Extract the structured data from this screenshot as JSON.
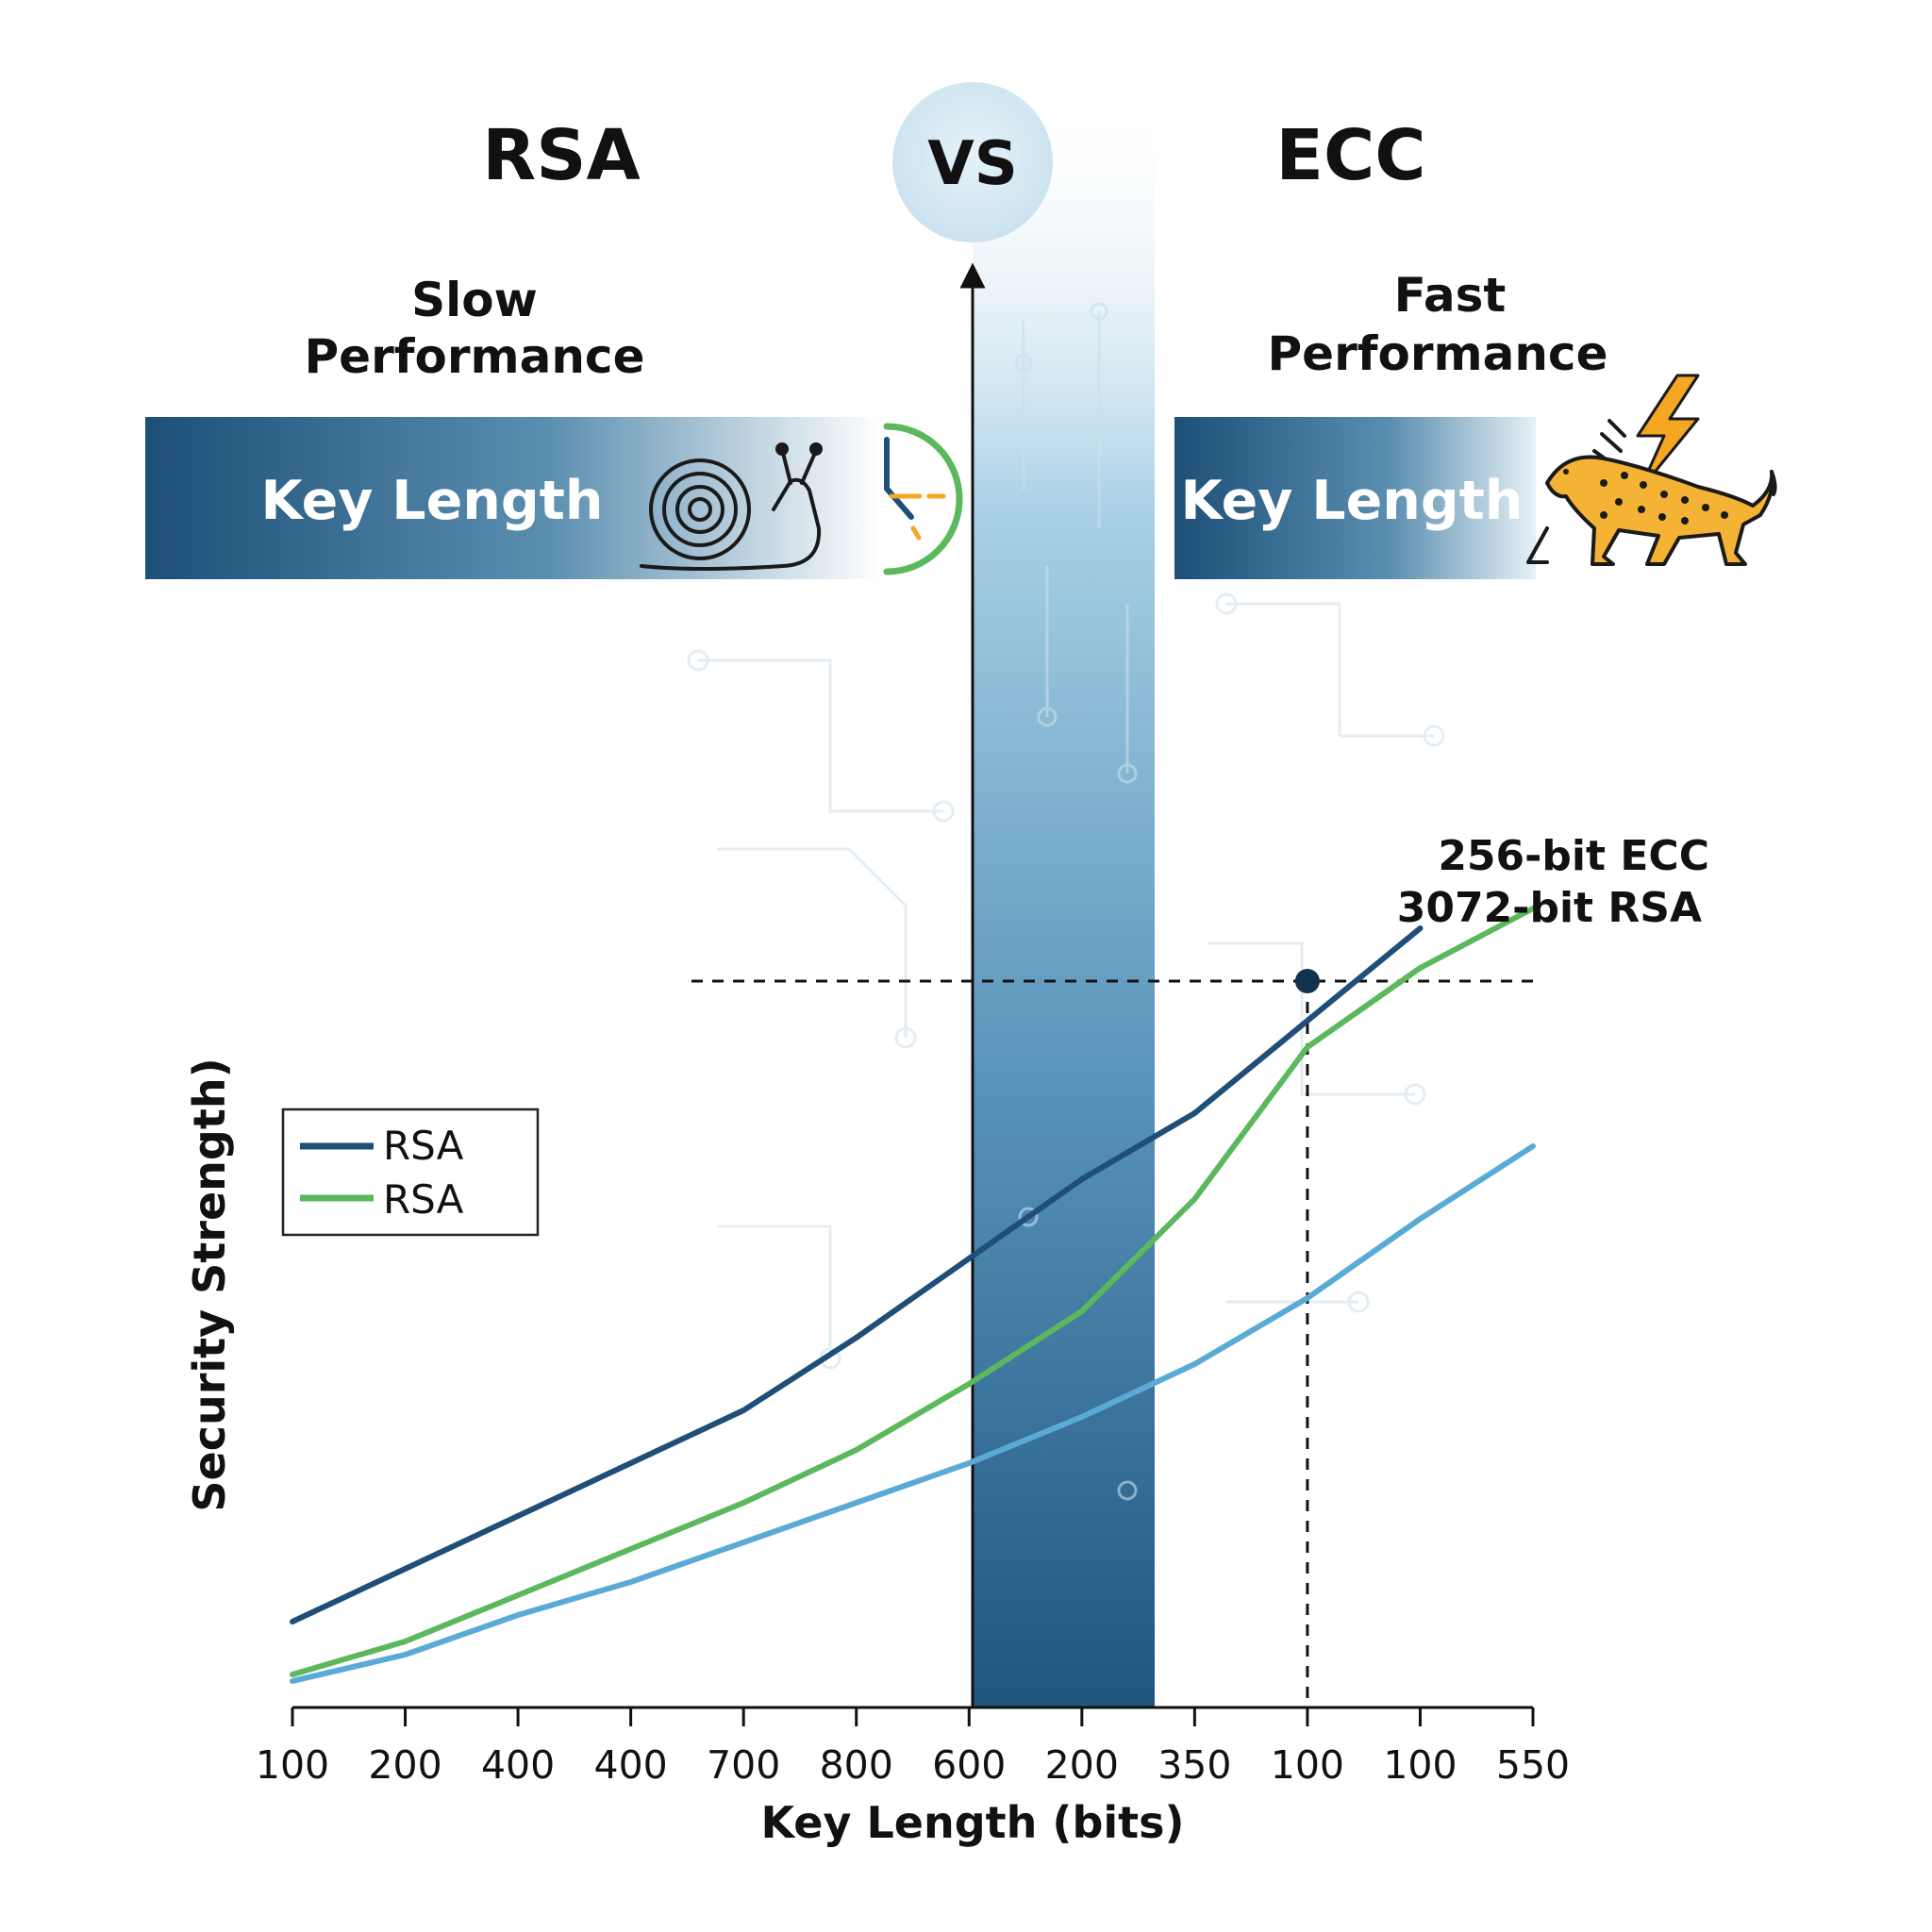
{
  "header": {
    "left_title": "RSA",
    "vs_label": "VS",
    "right_title": "ECC",
    "left_subtitle_line1": "Slow",
    "left_subtitle_line2": "Performance",
    "right_subtitle_line1": "Fast",
    "right_subtitle_line2": "Performance",
    "left_banner_label": "Key Length",
    "right_banner_label": "Key Length"
  },
  "icons": {
    "left": [
      "snail-icon",
      "clock-icon"
    ],
    "right": [
      "cheetah-icon",
      "lightning-icon"
    ]
  },
  "colors": {
    "rsa_dark": "#1f4e79",
    "rsa_green": "#5cb85c",
    "light_blue": "#5aaad6",
    "banner_dark": "#1d4f78",
    "accent_orange": "#f5a623"
  },
  "chart_data": {
    "type": "line",
    "categories": [
      "100",
      "200",
      "400",
      "400",
      "700",
      "800",
      "600",
      "200",
      "350",
      "100",
      "100",
      "550"
    ],
    "series": [
      {
        "name": "RSA",
        "color": "#1f4e79",
        "values": [
          13,
          21,
          29,
          37,
          45,
          56,
          68,
          80,
          90,
          104,
          118,
          null
        ]
      },
      {
        "name": "RSA",
        "color": "#5cb85c",
        "values": [
          5,
          10,
          17,
          24,
          31,
          39,
          49,
          60,
          77,
          100,
          112,
          121
        ]
      },
      {
        "name": "",
        "color": "#5aaad6",
        "values": [
          4,
          8,
          14,
          19,
          25,
          31,
          37,
          44,
          52,
          62,
          74,
          85
        ]
      }
    ],
    "xlabel": "Key Length (bits)",
    "ylabel": "Security Strength)",
    "ylim": [
      0,
      130
    ],
    "annotation_lines": [
      "256-bit ECC",
      "3072-bit RSA"
    ],
    "reference_point": {
      "category_index": 9,
      "value": 110
    },
    "legend_position": "left",
    "grid": false
  }
}
